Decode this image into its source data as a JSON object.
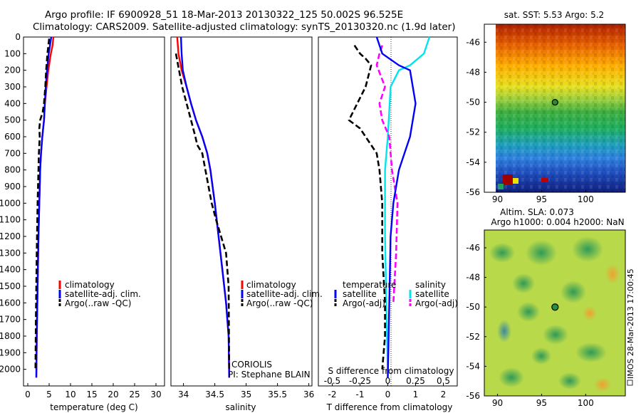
{
  "header": {
    "line1": "Argo profile: IF 6900928_51 18-Mar-2013 20130322_125 50.002S 96.525E",
    "line2": "Climatology: CARS2009. Satellite-adjusted climatology: synTS_20130320.nc (1.9d later)"
  },
  "colors": {
    "climatology": "#ff0000",
    "satellite": "#0000ff",
    "argo": "#000000",
    "sal_satellite": "#00e5ee",
    "sal_argo": "#ff00ff"
  },
  "chart_data": [
    {
      "type": "line",
      "id": "temperature",
      "xlabel": "temperature (deg C)",
      "xticks": [
        0,
        5,
        10,
        15,
        20,
        25,
        30
      ],
      "xlim": [
        -1,
        32
      ],
      "ylim": [
        2100,
        0
      ],
      "yticks": [
        0,
        100,
        200,
        300,
        400,
        500,
        600,
        700,
        800,
        900,
        1000,
        1100,
        1200,
        1300,
        1400,
        1500,
        1600,
        1700,
        1800,
        1900,
        2000
      ],
      "legend": [
        "climatology",
        "satellite-adj. clim.",
        "Argo(..raw -QC)"
      ],
      "series": [
        {
          "name": "climatology",
          "x": [
            6.0,
            5.8,
            5.4,
            4.8,
            4.4,
            4.0,
            3.8,
            3.4,
            3.1,
            2.9,
            2.7,
            2.5,
            2.3,
            2.1,
            2.0
          ],
          "y": [
            0,
            50,
            100,
            200,
            300,
            400,
            500,
            600,
            700,
            800,
            1000,
            1200,
            1500,
            1800,
            2050
          ]
        },
        {
          "name": "satellite-adj. clim.",
          "x": [
            5.5,
            5.2,
            4.9,
            4.5,
            4.2,
            4.0,
            3.8,
            3.4,
            3.1,
            2.9,
            2.7,
            2.5,
            2.3,
            2.1,
            2.0
          ],
          "y": [
            0,
            50,
            100,
            200,
            300,
            400,
            500,
            600,
            700,
            800,
            1000,
            1200,
            1500,
            1800,
            2050
          ]
        },
        {
          "name": "Argo(..raw -QC)",
          "x": [
            5.0,
            4.6,
            4.3,
            4.1,
            3.8,
            3.5,
            2.9,
            2.7,
            2.8,
            2.6,
            2.5,
            2.3,
            2.1,
            1.9,
            1.8
          ],
          "y": [
            10,
            100,
            200,
            300,
            400,
            450,
            500,
            550,
            600,
            700,
            800,
            1000,
            1300,
            1700,
            2000
          ]
        }
      ]
    },
    {
      "type": "line",
      "id": "salinity",
      "xlabel": "salinity",
      "xticks": [
        34,
        34.5,
        35,
        35.5,
        36
      ],
      "xticklabels": [
        "34",
        "34.5",
        "35",
        "35.5",
        "36"
      ],
      "xlim": [
        33.8,
        36.05
      ],
      "ylim": [
        2100,
        0
      ],
      "legend": [
        "climatology",
        "satellite-adj. clim.",
        "Argo(..raw -QC)"
      ],
      "annotation": [
        "CORIOLIS",
        "PI: Stephane BLAIN"
      ],
      "series": [
        {
          "name": "climatology",
          "x": [
            33.9,
            33.92,
            33.97,
            34.05,
            34.12,
            34.2,
            34.3,
            34.38,
            34.43,
            34.5,
            34.56,
            34.62,
            34.68,
            34.72,
            34.73
          ],
          "y": [
            0,
            100,
            200,
            300,
            400,
            500,
            600,
            700,
            800,
            1000,
            1200,
            1400,
            1600,
            1800,
            2050
          ]
        },
        {
          "name": "satellite-adj. clim.",
          "x": [
            33.96,
            33.97,
            33.99,
            34.05,
            34.12,
            34.2,
            34.3,
            34.38,
            34.43,
            34.5,
            34.56,
            34.62,
            34.68,
            34.72,
            34.73
          ],
          "y": [
            0,
            100,
            200,
            300,
            400,
            500,
            600,
            700,
            800,
            1000,
            1200,
            1400,
            1600,
            1800,
            2050
          ]
        },
        {
          "name": "Argo(..raw -QC)",
          "x": [
            33.88,
            33.93,
            33.98,
            34.05,
            34.12,
            34.19,
            34.22,
            34.3,
            34.35,
            34.4,
            34.45,
            34.52,
            34.6,
            34.68,
            34.72,
            34.73
          ],
          "y": [
            100,
            200,
            300,
            400,
            500,
            600,
            650,
            700,
            800,
            900,
            1000,
            1100,
            1200,
            1300,
            1500,
            2000
          ]
        }
      ]
    },
    {
      "type": "line",
      "id": "difference",
      "xlabel_bottom": "T difference from climatology",
      "xlabel_top": "S difference from climatology",
      "xticks_T": [
        -2,
        -1,
        0,
        1,
        2
      ],
      "xticks_S": [
        -0.5,
        -0.25,
        0,
        0.25,
        0.5
      ],
      "xticklabels_S": [
        "-0.5",
        "-0.25",
        "0",
        "0.25",
        "0.5"
      ],
      "xlim_T": [
        -2.5,
        2.5
      ],
      "ylim": [
        2100,
        0
      ],
      "legend": {
        "temperature_title": "temperature",
        "salinity_title": "salinity",
        "items": [
          "satellite",
          "Argo(-adj)",
          "satellite",
          "Argo(-adj)"
        ]
      },
      "series": [
        {
          "name": "T satellite",
          "x": [
            -0.4,
            -0.2,
            0.4,
            0.8,
            0.9,
            1.0,
            0.9,
            0.8,
            0.6,
            0.4,
            0.2,
            0.1,
            0.0
          ],
          "y": [
            0,
            100,
            170,
            200,
            300,
            400,
            500,
            600,
            700,
            800,
            1000,
            1200,
            2050
          ]
        },
        {
          "name": "T Argo(-adj)",
          "x": [
            -1.2,
            -1.0,
            -0.8,
            -0.6,
            -0.8,
            -1.4,
            -1.0,
            -0.8,
            -0.4,
            -0.3,
            -0.2,
            -0.2,
            -0.1,
            -0.1,
            -0.2
          ],
          "y": [
            50,
            100,
            130,
            170,
            300,
            500,
            550,
            600,
            700,
            800,
            1000,
            1300,
            1600,
            1800,
            2000
          ]
        },
        {
          "name": "S satellite",
          "x": [
            1.5,
            1.3,
            0.8,
            0.4,
            0.1,
            0.0,
            -0.1,
            -0.1,
            -0.05,
            0.0
          ],
          "y": [
            0,
            100,
            170,
            200,
            300,
            600,
            800,
            1200,
            1600,
            2050
          ]
        },
        {
          "name": "S Argo(-adj)",
          "x": [
            -0.2,
            -0.3,
            -0.4,
            -0.1,
            -0.3,
            -0.2,
            0.05,
            0.15,
            0.35,
            0.3,
            0.2
          ],
          "y": [
            50,
            100,
            170,
            300,
            400,
            500,
            600,
            800,
            1000,
            1300,
            1600
          ]
        }
      ]
    },
    {
      "type": "heatmap",
      "id": "sst_map",
      "title": "sat. SST: 5.53 Argo: 5.2",
      "xticks": [
        90,
        95,
        100
      ],
      "yticks": [
        -46,
        -48,
        -50,
        -52,
        -54,
        -56
      ],
      "xlim": [
        88.5,
        104.5
      ],
      "ylim": [
        -56,
        -44.8
      ],
      "marker": {
        "lon": 96.525,
        "lat": -50.002
      }
    },
    {
      "type": "heatmap",
      "id": "sla_map",
      "title": "Altim. SLA: 0.073",
      "subtitle": "Argo h1000: 0.004 h2000: NaN",
      "xticks": [
        90,
        95,
        100
      ],
      "yticks": [
        -46,
        -48,
        -50,
        -52,
        -54,
        -56
      ],
      "xlim": [
        88.5,
        104.5
      ],
      "ylim": [
        -56,
        -44.8
      ],
      "marker": {
        "lon": 96.525,
        "lat": -50.002
      }
    }
  ],
  "side_label": "IMOS 28-Mar-2013 17:00:45"
}
